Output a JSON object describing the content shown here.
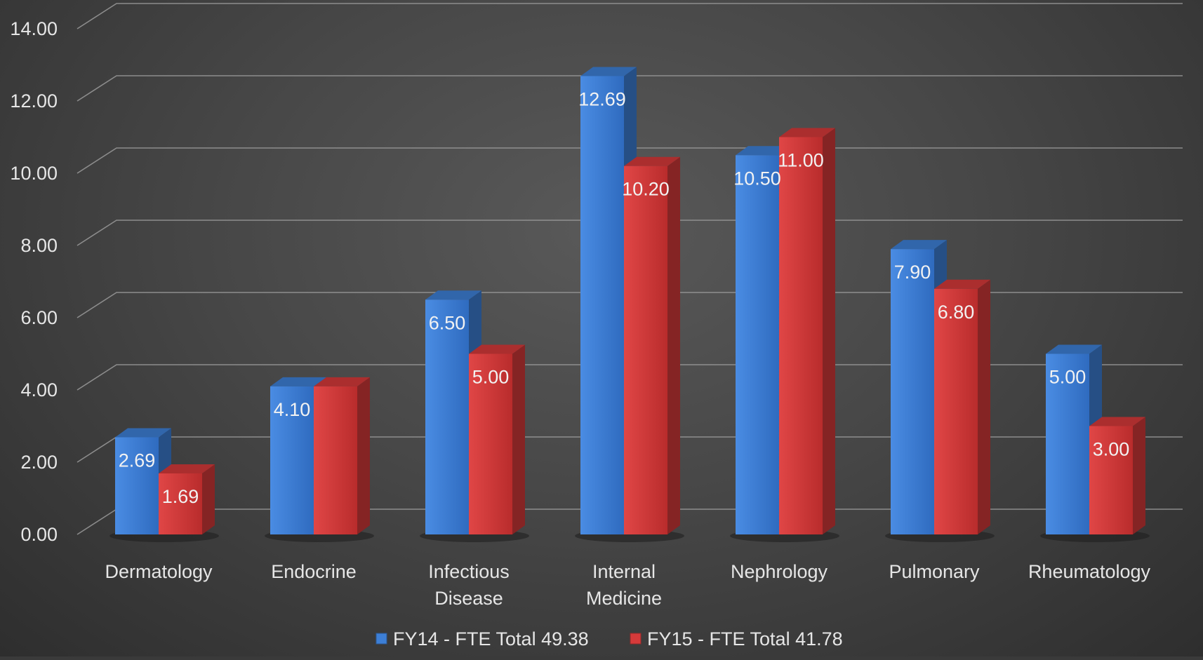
{
  "chart_data": {
    "type": "bar",
    "categories": [
      "Dermatology",
      "Endocrine",
      "Infectious Disease",
      "Internal Medicine",
      "Nephrology",
      "Pulmonary",
      "Rheumatology"
    ],
    "series": [
      {
        "name": "FY14 - FTE Total 49.38",
        "color": "#3d7fd6",
        "values": [
          2.69,
          4.1,
          6.5,
          12.69,
          10.5,
          7.9,
          5.0
        ]
      },
      {
        "name": "FY15 - FTE Total 41.78",
        "color": "#d63a3a",
        "values": [
          1.69,
          4.1,
          5.0,
          10.2,
          11.0,
          6.8,
          3.0
        ]
      }
    ],
    "data_labels": [
      [
        "2.69",
        "4.10",
        "6.50",
        "12.69",
        "10.50",
        "7.90",
        "5.00"
      ],
      [
        "1.69",
        "",
        "5.00",
        "10.20",
        "11.00",
        "6.80",
        "3.00"
      ]
    ],
    "y_ticks": [
      "0.00",
      "2.00",
      "4.00",
      "6.00",
      "8.00",
      "10.00",
      "12.00",
      "14.00"
    ],
    "ylim": [
      0,
      14
    ],
    "grid": true,
    "legend_position": "bottom",
    "style": "3d-clustered-column",
    "background": "#4a4a4a",
    "text_color": "#e6e6e6"
  }
}
